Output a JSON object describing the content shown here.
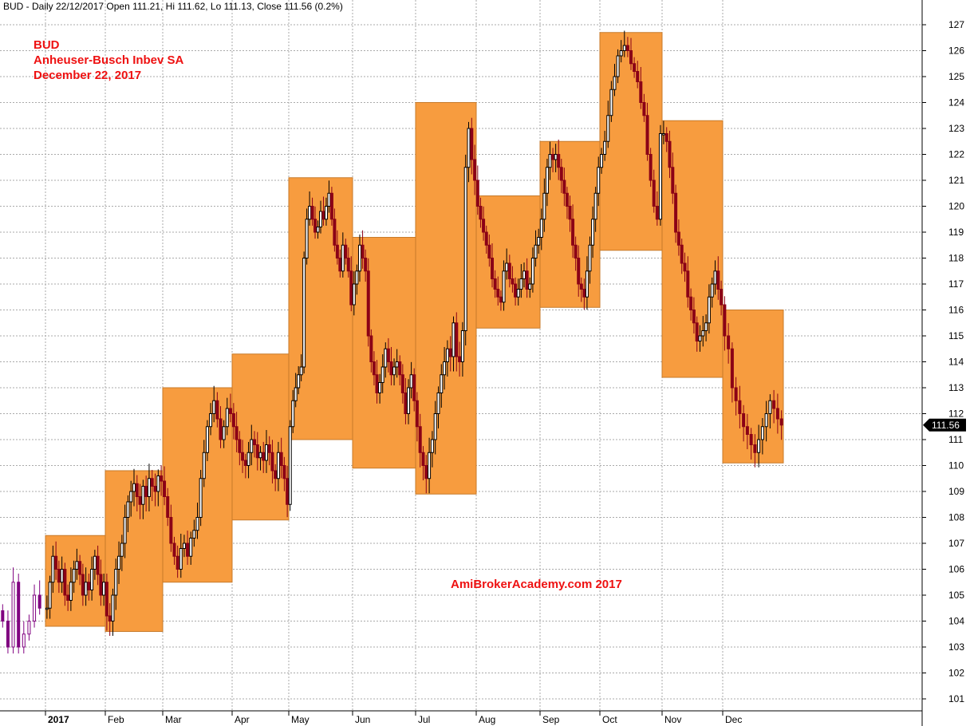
{
  "header": {
    "text": "BUD - Daily 22/12/2017 Open 111.21, Hi 111.62, Lo 111.13, Close 111.56 (0.2%)"
  },
  "titles": {
    "line1": "BUD",
    "line2": "Anheuser-Busch Inbev SA",
    "line3": "December 22, 2017"
  },
  "watermark": "AmiBrokerAcademy.com  2017",
  "colors": {
    "box": "#f79c3f",
    "up": "#000000",
    "down": "#8b0016",
    "pre": "#800080",
    "title": "#ee1111",
    "grid": "#aaaaaa"
  },
  "chart_data": {
    "type": "candlestick",
    "ylim": [
      100.6,
      127.4
    ],
    "y_ticks": [
      101,
      102,
      103,
      104,
      105,
      106,
      107,
      108,
      109,
      110,
      111,
      112,
      113,
      114,
      115,
      116,
      117,
      118,
      119,
      120,
      121,
      122,
      123,
      124,
      125,
      126,
      127
    ],
    "x_labels": [
      "2017",
      "Feb",
      "Mar",
      "Apr",
      "May",
      "Jun",
      "Jul",
      "Aug",
      "Sep",
      "Oct",
      "Nov",
      "Dec"
    ],
    "last_close": "111.56",
    "monthly_ranges": [
      {
        "month": "Jan",
        "low": 103.8,
        "high": 107.3
      },
      {
        "month": "Feb",
        "low": 103.6,
        "high": 109.8
      },
      {
        "month": "Mar",
        "low": 105.5,
        "high": 113.0
      },
      {
        "month": "Apr",
        "low": 107.9,
        "high": 114.3
      },
      {
        "month": "May",
        "low": 111.0,
        "high": 121.1
      },
      {
        "month": "Jun",
        "low": 109.9,
        "high": 118.8
      },
      {
        "month": "Jul",
        "low": 108.9,
        "high": 124.0
      },
      {
        "month": "Aug",
        "low": 115.3,
        "high": 120.4
      },
      {
        "month": "Sep",
        "low": 116.1,
        "high": 122.5
      },
      {
        "month": "Oct",
        "low": 118.3,
        "high": 126.7
      },
      {
        "month": "Nov",
        "low": 113.4,
        "high": 123.3
      },
      {
        "month": "Dec",
        "low": 110.1,
        "high": 116.0
      }
    ],
    "daily_path": [
      [
        "Dec-2016",
        [
          104,
          103,
          105.5,
          103,
          103.5,
          104,
          105,
          104.5
        ]
      ],
      [
        "Jan",
        [
          104.5,
          105.5,
          106.5,
          106,
          105.5,
          106,
          105,
          104.8,
          105.5,
          106,
          106.3,
          105.8,
          105,
          105.5,
          105.2,
          106,
          106.5,
          105.8,
          105,
          105.5
        ]
      ],
      [
        "Feb",
        [
          104.2,
          104,
          105,
          106,
          106.5,
          107,
          108,
          108.6,
          109,
          109.3,
          108.8,
          108.5,
          109.2,
          108.8,
          109.5,
          109.2,
          109,
          109.6,
          109.4
        ]
      ],
      [
        "Mar",
        [
          108.8,
          108,
          107,
          106.5,
          106,
          106.8,
          107,
          106.5,
          107.2,
          107.5,
          108,
          109.5,
          110.5,
          111.5,
          112,
          112.5,
          111.8,
          111,
          111.5,
          112.2,
          112
        ]
      ],
      [
        "Apr",
        [
          111.5,
          111,
          110.5,
          110.2,
          110,
          110.5,
          111,
          110.8,
          110.3,
          110.5,
          110.2,
          110.8,
          110.5,
          109.8,
          109.5,
          110.5,
          110,
          109.5,
          108.5
        ]
      ],
      [
        "May",
        [
          111.5,
          112.5,
          113,
          113.5,
          113.8,
          118,
          119.5,
          120,
          119.5,
          119,
          119.2,
          119.8,
          119.5,
          120,
          120.5,
          119.5,
          118.5,
          118,
          117.5,
          118.5,
          118,
          117.5,
          116.2
        ]
      ],
      [
        "Jun",
        [
          117,
          117.5,
          118.5,
          118,
          117.5,
          115,
          114,
          113.5,
          112.8,
          113.2,
          113.8,
          114.5,
          114,
          113.5,
          113.8,
          114,
          113.5,
          112.8,
          112,
          113,
          113.5,
          112.5
        ]
      ],
      [
        "Jul",
        [
          111.5,
          110.5,
          110,
          109.5,
          110.5,
          111,
          112,
          112.8,
          113.5,
          114,
          114.5,
          114.2,
          115.5,
          114.2,
          114,
          115.2,
          121.5,
          123,
          121.8,
          121
        ]
      ],
      [
        "Aug",
        [
          120,
          119.5,
          119,
          118.5,
          118,
          117.2,
          116.8,
          116.5,
          116.3,
          117.5,
          117.8,
          117.2,
          117,
          116.5,
          116.8,
          117.2,
          117.5,
          116.8,
          117,
          118,
          118.5,
          118.8
        ]
      ],
      [
        "Sep",
        [
          119.5,
          120.5,
          121.5,
          122,
          121.8,
          122,
          121.5,
          121,
          120.5,
          120,
          119.5,
          118.5,
          118,
          117,
          116.8,
          116.5,
          117.5,
          118.5,
          119.5,
          120.5,
          121.5
        ]
      ],
      [
        "Oct",
        [
          122,
          122.5,
          123.5,
          124.5,
          125,
          125.8,
          126,
          126.2,
          126,
          125.5,
          125.2,
          124.8,
          124,
          123.5,
          122,
          121,
          120,
          119.5,
          122.8
        ]
      ],
      [
        "Nov",
        [
          122.8,
          122.5,
          121.5,
          120.5,
          119,
          118.5,
          117.8,
          117.5,
          116.5,
          116,
          115.5,
          114.8,
          115,
          115.2,
          115.5,
          116.5,
          117,
          117.5,
          116.8,
          116.2
        ]
      ],
      [
        "Dec",
        [
          115,
          114.5,
          113,
          112.5,
          112,
          111.5,
          111.2,
          110.8,
          110.5,
          111,
          111.5,
          112,
          112.5,
          112.2,
          111.8,
          111.56
        ]
      ]
    ]
  }
}
